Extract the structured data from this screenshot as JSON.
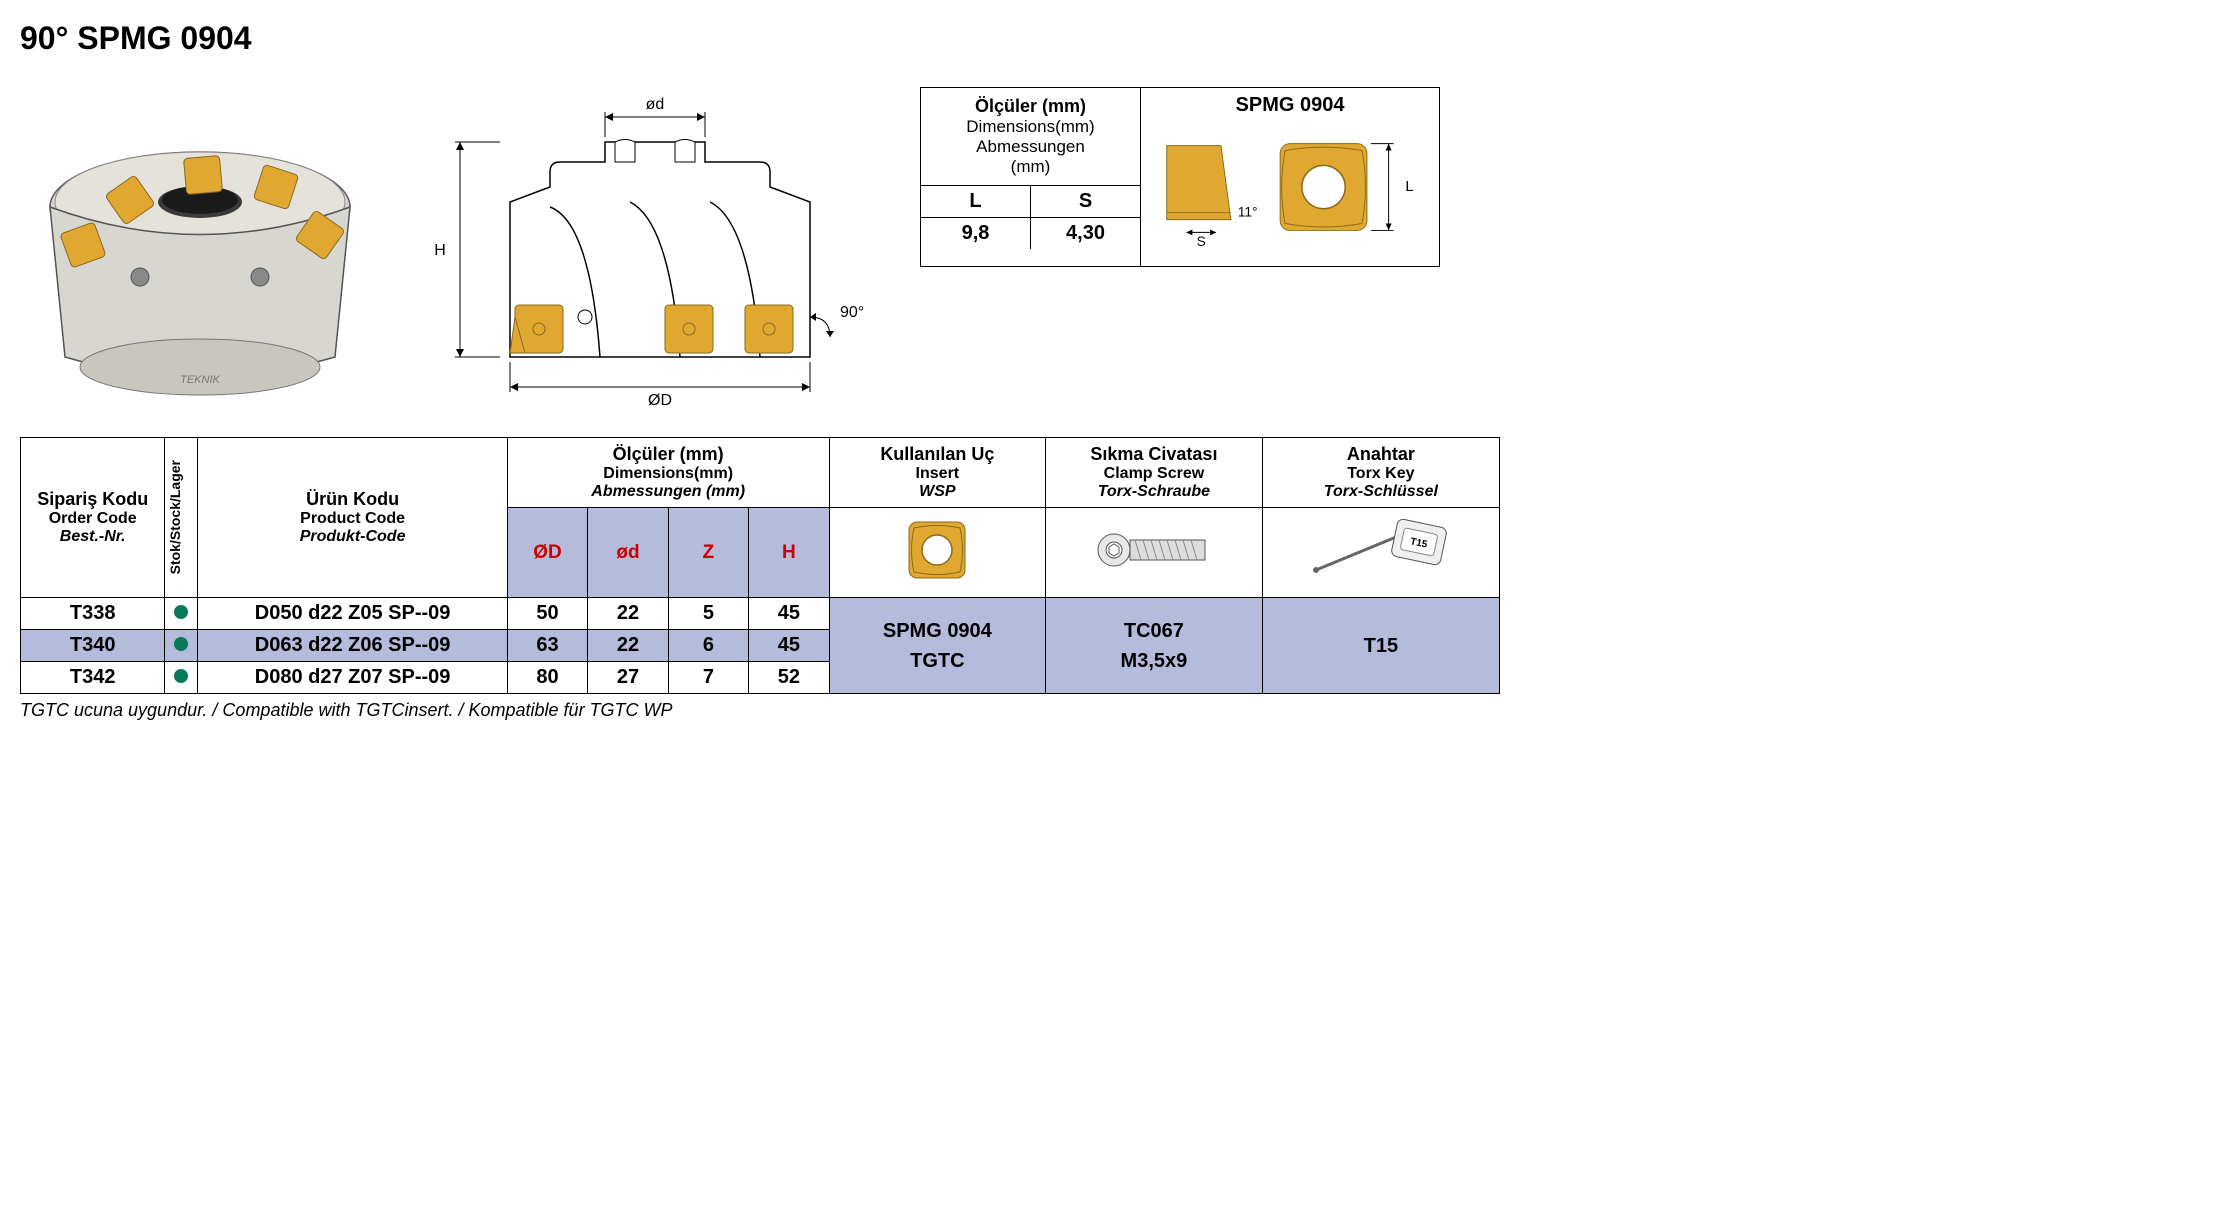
{
  "title": "90° SPMG 0904",
  "diagram_labels": {
    "H": "H",
    "od_small": "ød",
    "OD_big": "ØD",
    "angle": "90°"
  },
  "spec_box": {
    "header_bold": "Ölçüler (mm)",
    "header_sub1": "Dimensions(mm)",
    "header_sub2": "Abmessungen",
    "header_sub3": "(mm)",
    "col_L": "L",
    "col_S": "S",
    "val_L": "9,8",
    "val_S": "4,30",
    "right_title": "SPMG 0904",
    "angle_label": "11°",
    "dim_L": "L",
    "dim_S": "S"
  },
  "headers": {
    "order": {
      "bold": "Sipariş Kodu",
      "sub": "Order Code",
      "ital": "Best.-Nr."
    },
    "stock": "Stok/Stock/Lager",
    "product": {
      "bold": "Ürün Kodu",
      "sub": "Product Code",
      "ital": "Produkt-Code"
    },
    "dims": {
      "bold": "Ölçüler (mm)",
      "sub": "Dimensions(mm)",
      "ital": "Abmessungen (mm)"
    },
    "insert": {
      "bold": "Kullanılan Uç",
      "sub": "Insert",
      "ital": "WSP"
    },
    "screw": {
      "bold": "Sıkma Civatası",
      "sub": "Clamp Screw",
      "ital": "Torx-Schraube"
    },
    "key": {
      "bold": "Anahtar",
      "sub": "Torx Key",
      "ital": "Torx-Schlüssel"
    }
  },
  "sub_headers": {
    "OD": "ØD",
    "od": "ød",
    "Z": "Z",
    "H": "H"
  },
  "rows": [
    {
      "order": "T338",
      "product": "D050 d22 Z05 SP--09",
      "OD": "50",
      "od": "22",
      "Z": "5",
      "H": "45",
      "shade": false
    },
    {
      "order": "T340",
      "product": "D063 d22 Z06 SP--09",
      "OD": "63",
      "od": "22",
      "Z": "6",
      "H": "45",
      "shade": true
    },
    {
      "order": "T342",
      "product": "D080 d27 Z07 SP--09",
      "OD": "80",
      "od": "27",
      "Z": "7",
      "H": "52",
      "shade": false
    }
  ],
  "merged": {
    "insert": "SPMG 0904\nTGTC",
    "screw": "TC067\nM3,5x9",
    "key": "T15"
  },
  "footnote": "TGTC ucuna uygundur. / Compatible with TGTCinsert. / Kompatible für TGTC WP",
  "colors": {
    "header_bg": "#b4bbdb",
    "stock_dot": "#0a7a5e",
    "red": "#c00",
    "insert_fill": "#e0a830",
    "insert_stroke": "#8a6a1a",
    "body_fill": "#d8d6d0"
  }
}
